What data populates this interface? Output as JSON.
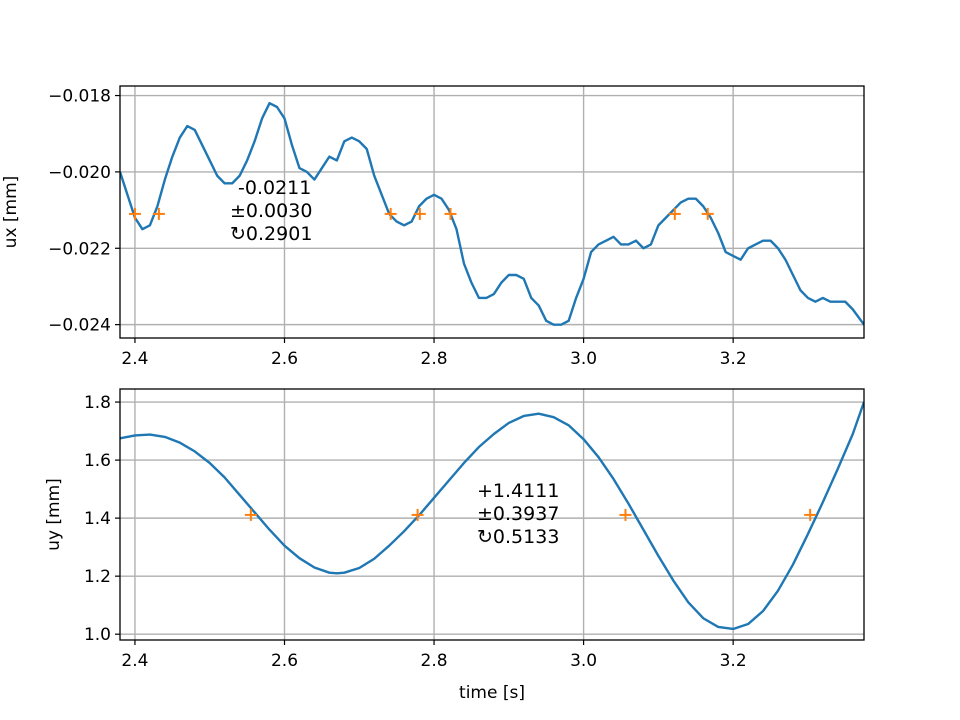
{
  "chart_data": [
    {
      "type": "line",
      "ylabel": "ux [mm]",
      "xlabel": "",
      "xlim": [
        2.38,
        3.375
      ],
      "ylim": [
        -0.02435,
        -0.01775
      ],
      "xticks": [
        2.4,
        2.6,
        2.8,
        3.0,
        3.2
      ],
      "xtick_labels": [
        "2.4",
        "2.6",
        "2.8",
        "3.0",
        "3.2"
      ],
      "yticks": [
        -0.024,
        -0.022,
        -0.02,
        -0.018
      ],
      "ytick_labels": [
        "−0.024",
        "−0.022",
        "−0.020",
        "−0.018"
      ],
      "grid": true,
      "series": [
        {
          "x": [
            2.38,
            2.39,
            2.4,
            2.41,
            2.42,
            2.43,
            2.44,
            2.45,
            2.46,
            2.47,
            2.48,
            2.49,
            2.5,
            2.51,
            2.52,
            2.53,
            2.54,
            2.55,
            2.56,
            2.57,
            2.58,
            2.59,
            2.6,
            2.61,
            2.62,
            2.63,
            2.64,
            2.65,
            2.66,
            2.67,
            2.68,
            2.69,
            2.7,
            2.71,
            2.72,
            2.73,
            2.74,
            2.75,
            2.76,
            2.77,
            2.78,
            2.79,
            2.8,
            2.81,
            2.82,
            2.83,
            2.84,
            2.85,
            2.86,
            2.87,
            2.88,
            2.89,
            2.9,
            2.91,
            2.92,
            2.93,
            2.94,
            2.95,
            2.96,
            2.97,
            2.98,
            2.99,
            3.0,
            3.01,
            3.02,
            3.03,
            3.04,
            3.05,
            3.06,
            3.07,
            3.08,
            3.09,
            3.1,
            3.11,
            3.12,
            3.13,
            3.14,
            3.15,
            3.16,
            3.17,
            3.18,
            3.19,
            3.2,
            3.21,
            3.22,
            3.23,
            3.24,
            3.25,
            3.26,
            3.27,
            3.28,
            3.29,
            3.3,
            3.31,
            3.32,
            3.33,
            3.34,
            3.35,
            3.36,
            3.375
          ],
          "y": [
            -0.02,
            -0.0206,
            -0.0212,
            -0.0215,
            -0.0214,
            -0.0209,
            -0.0202,
            -0.0196,
            -0.0191,
            -0.0188,
            -0.0189,
            -0.0193,
            -0.0197,
            -0.0201,
            -0.0203,
            -0.0203,
            -0.0201,
            -0.0197,
            -0.0192,
            -0.0186,
            -0.0182,
            -0.0183,
            -0.0186,
            -0.0193,
            -0.0199,
            -0.02,
            -0.0202,
            -0.0199,
            -0.0196,
            -0.0197,
            -0.0192,
            -0.0191,
            -0.0192,
            -0.0194,
            -0.0201,
            -0.0206,
            -0.0211,
            -0.0213,
            -0.0214,
            -0.0213,
            -0.0209,
            -0.0207,
            -0.0206,
            -0.0207,
            -0.021,
            -0.0215,
            -0.0224,
            -0.0229,
            -0.0233,
            -0.0233,
            -0.0232,
            -0.0229,
            -0.0227,
            -0.0227,
            -0.0228,
            -0.0233,
            -0.0235,
            -0.0239,
            -0.024,
            -0.024,
            -0.0239,
            -0.0233,
            -0.0228,
            -0.0221,
            -0.0219,
            -0.0218,
            -0.0217,
            -0.0219,
            -0.0219,
            -0.0218,
            -0.022,
            -0.0219,
            -0.0214,
            -0.0212,
            -0.021,
            -0.0208,
            -0.0207,
            -0.0207,
            -0.0209,
            -0.0212,
            -0.0216,
            -0.0221,
            -0.0222,
            -0.0223,
            -0.022,
            -0.0219,
            -0.0218,
            -0.0218,
            -0.022,
            -0.0223,
            -0.0227,
            -0.0231,
            -0.0233,
            -0.0234,
            -0.0233,
            -0.0234,
            -0.0234,
            -0.0234,
            -0.0236,
            -0.024
          ]
        }
      ],
      "crossing_level": -0.0211,
      "crossing_x": [
        2.4,
        2.432,
        2.742,
        2.781,
        2.822,
        3.122,
        3.166
      ],
      "annotation": [
        "-0.0211",
        "±0.0030",
        "↻0.2901"
      ]
    },
    {
      "type": "line",
      "ylabel": "uy [mm]",
      "xlabel": "time [s]",
      "xlim": [
        2.38,
        3.375
      ],
      "ylim": [
        0.98,
        1.845
      ],
      "xticks": [
        2.4,
        2.6,
        2.8,
        3.0,
        3.2
      ],
      "xtick_labels": [
        "2.4",
        "2.6",
        "2.8",
        "3.0",
        "3.2"
      ],
      "yticks": [
        1.0,
        1.2,
        1.4,
        1.6,
        1.8
      ],
      "ytick_labels": [
        "1.0",
        "1.2",
        "1.4",
        "1.6",
        "1.8"
      ],
      "grid": true,
      "series": [
        {
          "x": [
            2.38,
            2.4,
            2.42,
            2.44,
            2.46,
            2.48,
            2.5,
            2.52,
            2.54,
            2.56,
            2.58,
            2.6,
            2.62,
            2.64,
            2.66,
            2.67,
            2.68,
            2.7,
            2.72,
            2.74,
            2.76,
            2.78,
            2.8,
            2.82,
            2.84,
            2.86,
            2.88,
            2.9,
            2.92,
            2.94,
            2.96,
            2.98,
            3.0,
            3.02,
            3.04,
            3.06,
            3.08,
            3.1,
            3.12,
            3.14,
            3.16,
            3.18,
            3.2,
            3.22,
            3.24,
            3.26,
            3.28,
            3.3,
            3.32,
            3.34,
            3.36,
            3.375
          ],
          "y": [
            1.675,
            1.685,
            1.688,
            1.68,
            1.66,
            1.63,
            1.59,
            1.54,
            1.48,
            1.42,
            1.36,
            1.305,
            1.262,
            1.23,
            1.212,
            1.21,
            1.212,
            1.228,
            1.26,
            1.305,
            1.355,
            1.41,
            1.47,
            1.53,
            1.59,
            1.645,
            1.69,
            1.728,
            1.752,
            1.76,
            1.748,
            1.72,
            1.672,
            1.61,
            1.535,
            1.45,
            1.36,
            1.27,
            1.185,
            1.11,
            1.055,
            1.025,
            1.018,
            1.035,
            1.08,
            1.15,
            1.24,
            1.345,
            1.455,
            1.57,
            1.69,
            1.8
          ]
        }
      ],
      "crossing_level": 1.4111,
      "crossing_x": [
        2.555,
        2.778,
        3.056,
        3.303
      ],
      "annotation": [
        "+1.4111",
        "±0.3937",
        "↻0.5133"
      ]
    }
  ]
}
